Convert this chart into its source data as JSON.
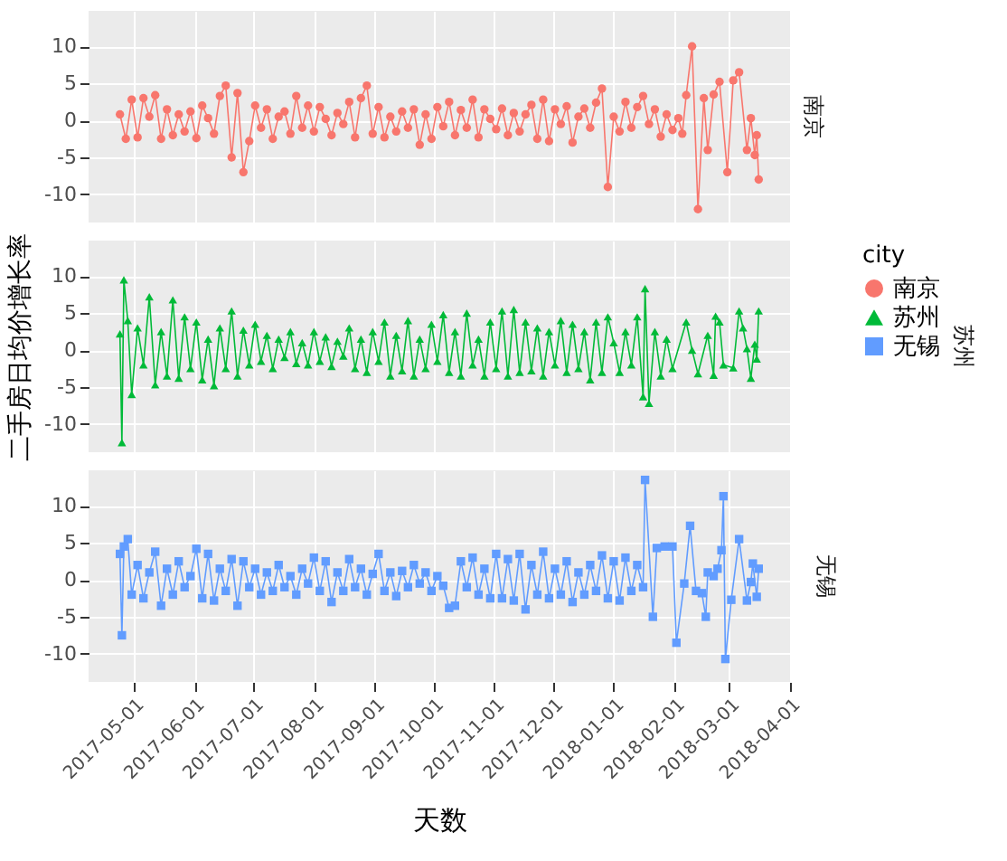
{
  "chart_data": [
    {
      "type": "line",
      "marker": "circle",
      "grid": true,
      "tick_labels": "y",
      "xlim": [
        "2017-04-08",
        "2018-04-01"
      ],
      "ylim": [
        -13.8,
        14.8
      ],
      "yticks": [
        -10,
        -5,
        0,
        5,
        10
      ],
      "x": [
        "2017-04-24",
        "2017-04-27",
        "2017-04-30",
        "2017-05-03",
        "2017-05-06",
        "2017-05-09",
        "2017-05-12",
        "2017-05-15",
        "2017-05-18",
        "2017-05-21",
        "2017-05-24",
        "2017-05-27",
        "2017-05-30",
        "2017-06-02",
        "2017-06-05",
        "2017-06-08",
        "2017-06-11",
        "2017-06-14",
        "2017-06-17",
        "2017-06-20",
        "2017-06-23",
        "2017-06-26",
        "2017-06-29",
        "2017-07-02",
        "2017-07-05",
        "2017-07-08",
        "2017-07-11",
        "2017-07-14",
        "2017-07-17",
        "2017-07-20",
        "2017-07-23",
        "2017-07-26",
        "2017-07-29",
        "2017-08-01",
        "2017-08-04",
        "2017-08-07",
        "2017-08-10",
        "2017-08-13",
        "2017-08-16",
        "2017-08-19",
        "2017-08-22",
        "2017-08-25",
        "2017-08-28",
        "2017-08-31",
        "2017-09-03",
        "2017-09-06",
        "2017-09-09",
        "2017-09-12",
        "2017-09-15",
        "2017-09-18",
        "2017-09-21",
        "2017-09-24",
        "2017-09-27",
        "2017-09-30",
        "2017-10-03",
        "2017-10-06",
        "2017-10-09",
        "2017-10-12",
        "2017-10-15",
        "2017-10-18",
        "2017-10-21",
        "2017-10-24",
        "2017-10-27",
        "2017-10-30",
        "2017-11-02",
        "2017-11-05",
        "2017-11-08",
        "2017-11-11",
        "2017-11-14",
        "2017-11-17",
        "2017-11-20",
        "2017-11-23",
        "2017-11-26",
        "2017-11-29",
        "2017-12-02",
        "2017-12-05",
        "2017-12-08",
        "2017-12-11",
        "2017-12-14",
        "2017-12-17",
        "2017-12-20",
        "2017-12-23",
        "2017-12-26",
        "2017-12-29",
        "2018-01-01",
        "2018-01-04",
        "2018-01-07",
        "2018-01-10",
        "2018-01-13",
        "2018-01-16",
        "2018-01-19",
        "2018-01-22",
        "2018-01-25",
        "2018-01-28",
        "2018-01-31",
        "2018-02-03",
        "2018-02-05",
        "2018-02-07",
        "2018-02-10",
        "2018-02-13",
        "2018-02-16",
        "2018-02-18",
        "2018-02-21",
        "2018-02-24",
        "2018-02-28",
        "2018-03-03",
        "2018-03-06",
        "2018-03-10",
        "2018-03-12",
        "2018-03-14",
        "2018-03-15",
        "2018-03-16"
      ],
      "series": [
        {
          "name": "南京",
          "color": "#f8766d",
          "values": [
            0.8,
            -2.5,
            2.8,
            -2.3,
            3,
            0.5,
            3.4,
            -2.5,
            1.5,
            -2,
            0.8,
            -1.5,
            1.2,
            -2.4,
            2,
            0.3,
            -1.8,
            3.3,
            4.7,
            -5,
            3.7,
            -7,
            -2.8,
            2,
            -1,
            1.5,
            -2.5,
            0.5,
            1.2,
            -1.8,
            3.3,
            -1,
            2,
            -1.5,
            1.8,
            0.2,
            -2,
            1,
            -0.5,
            2.5,
            -2.3,
            3,
            4.7,
            -1.8,
            1.8,
            -2.3,
            0.5,
            -1.5,
            1.2,
            -1,
            1.5,
            -3.3,
            0.8,
            -2.5,
            1.8,
            -0.8,
            2.5,
            -2,
            1.4,
            -1,
            2.8,
            -2.3,
            1.5,
            0.2,
            -1.2,
            1.6,
            -2,
            1,
            -1.5,
            0.8,
            2.1,
            -2.5,
            2.8,
            -2.8,
            1.5,
            -0.5,
            1.9,
            -3,
            0.5,
            1.6,
            -1,
            2.4,
            4.3,
            -9,
            0.5,
            -1.5,
            2.5,
            -1,
            1.8,
            3.3,
            -0.5,
            1.5,
            -2.2,
            0.8,
            -1.3,
            0.3,
            -1.8,
            3.4,
            10,
            -12,
            3,
            -4,
            3.5,
            5.2,
            -7,
            5.4,
            6.5,
            -4,
            0.3,
            -4.7,
            -2,
            -8
          ]
        }
      ]
    },
    {
      "type": "line",
      "marker": "triangle",
      "grid": true,
      "tick_labels": "y",
      "ylabel": "二手房日均价增长率",
      "legend": "right",
      "legend_title": "city",
      "xlim": [
        "2017-04-08",
        "2018-04-01"
      ],
      "ylim": [
        -13.8,
        14.8
      ],
      "yticks": [
        -10,
        -5,
        0,
        5,
        10
      ],
      "x": [
        "2017-04-24",
        "2017-04-25",
        "2017-04-26",
        "2017-04-28",
        "2017-04-30",
        "2017-05-03",
        "2017-05-06",
        "2017-05-09",
        "2017-05-12",
        "2017-05-15",
        "2017-05-18",
        "2017-05-21",
        "2017-05-24",
        "2017-05-27",
        "2017-05-30",
        "2017-06-02",
        "2017-06-05",
        "2017-06-08",
        "2017-06-11",
        "2017-06-14",
        "2017-06-17",
        "2017-06-20",
        "2017-06-23",
        "2017-06-26",
        "2017-06-29",
        "2017-07-02",
        "2017-07-05",
        "2017-07-08",
        "2017-07-11",
        "2017-07-14",
        "2017-07-17",
        "2017-07-20",
        "2017-07-23",
        "2017-07-26",
        "2017-07-29",
        "2017-08-01",
        "2017-08-04",
        "2017-08-07",
        "2017-08-10",
        "2017-08-13",
        "2017-08-16",
        "2017-08-19",
        "2017-08-22",
        "2017-08-25",
        "2017-08-28",
        "2017-08-31",
        "2017-09-03",
        "2017-09-06",
        "2017-09-09",
        "2017-09-12",
        "2017-09-15",
        "2017-09-18",
        "2017-09-21",
        "2017-09-24",
        "2017-09-27",
        "2017-09-30",
        "2017-10-03",
        "2017-10-06",
        "2017-10-09",
        "2017-10-12",
        "2017-10-15",
        "2017-10-18",
        "2017-10-21",
        "2017-10-24",
        "2017-10-27",
        "2017-10-30",
        "2017-11-02",
        "2017-11-05",
        "2017-11-08",
        "2017-11-11",
        "2017-11-14",
        "2017-11-17",
        "2017-11-20",
        "2017-11-23",
        "2017-11-26",
        "2017-11-29",
        "2017-12-02",
        "2017-12-05",
        "2017-12-08",
        "2017-12-11",
        "2017-12-14",
        "2017-12-17",
        "2017-12-20",
        "2017-12-23",
        "2017-12-26",
        "2017-12-29",
        "2018-01-01",
        "2018-01-04",
        "2018-01-07",
        "2018-01-10",
        "2018-01-13",
        "2018-01-16",
        "2018-01-17",
        "2018-01-19",
        "2018-01-22",
        "2018-01-25",
        "2018-01-28",
        "2018-01-31",
        "2018-02-07",
        "2018-02-10",
        "2018-02-13",
        "2018-02-18",
        "2018-02-21",
        "2018-02-22",
        "2018-02-24",
        "2018-02-26",
        "2018-03-03",
        "2018-03-06",
        "2018-03-08",
        "2018-03-10",
        "2018-03-12",
        "2018-03-14",
        "2018-03-15",
        "2018-03-16"
      ],
      "series": [
        {
          "name": "苏州",
          "color": "#00ba38",
          "values": [
            2.2,
            -12.5,
            9.5,
            4,
            -6,
            3,
            -2,
            7.2,
            -4.7,
            2.5,
            -3.5,
            6.8,
            -3.8,
            4.5,
            -2.5,
            3.8,
            -4,
            1.5,
            -4.8,
            3,
            -2.5,
            5.3,
            -3.5,
            2.7,
            -2,
            3.5,
            -1.5,
            2,
            -2.5,
            1.5,
            -1,
            2.5,
            -1.8,
            1,
            -2,
            2.5,
            -1.5,
            1.8,
            -2.2,
            1.2,
            -0.8,
            3,
            -2.5,
            1.5,
            -3,
            2.5,
            -1.5,
            3.8,
            -3.5,
            2,
            -2.8,
            4,
            -3.5,
            1.5,
            -2.5,
            3.5,
            -1.5,
            4.8,
            -3,
            2.5,
            -3.5,
            5,
            -2,
            1.5,
            -3.5,
            3.8,
            -2.5,
            5.3,
            -3.5,
            5.5,
            -3,
            3.8,
            -2.8,
            3,
            -3.5,
            2.5,
            -2,
            4,
            -3,
            3.5,
            -2.5,
            2.5,
            -4,
            3.8,
            -3,
            4.5,
            1,
            -3,
            2.5,
            -2,
            4.5,
            -6.3,
            8.3,
            -7.2,
            2.5,
            -3.5,
            1.5,
            -2.5,
            3.8,
            0,
            -3.2,
            2,
            -3.4,
            4.6,
            3.8,
            -2,
            -2.4,
            5.3,
            3,
            0.2,
            -3.8,
            0.8,
            -1.2,
            5.3
          ]
        }
      ]
    },
    {
      "type": "line",
      "marker": "square",
      "grid": true,
      "xlabel": "天数",
      "xlim": [
        "2017-04-08",
        "2018-04-01"
      ],
      "ylim": [
        -13.8,
        14.8
      ],
      "yticks": [
        -10,
        -5,
        0,
        5,
        10
      ],
      "xticks": [
        "2017-05-01",
        "2017-06-01",
        "2017-07-01",
        "2017-08-01",
        "2017-09-01",
        "2017-10-01",
        "2017-11-01",
        "2017-12-01",
        "2018-01-01",
        "2018-02-01",
        "2018-03-01",
        "2018-04-01"
      ],
      "x": [
        "2017-04-24",
        "2017-04-25",
        "2017-04-26",
        "2017-04-28",
        "2017-04-30",
        "2017-05-03",
        "2017-05-06",
        "2017-05-09",
        "2017-05-12",
        "2017-05-15",
        "2017-05-18",
        "2017-05-21",
        "2017-05-24",
        "2017-05-27",
        "2017-05-30",
        "2017-06-02",
        "2017-06-05",
        "2017-06-08",
        "2017-06-11",
        "2017-06-14",
        "2017-06-17",
        "2017-06-20",
        "2017-06-23",
        "2017-06-26",
        "2017-06-29",
        "2017-07-02",
        "2017-07-05",
        "2017-07-08",
        "2017-07-11",
        "2017-07-14",
        "2017-07-17",
        "2017-07-20",
        "2017-07-23",
        "2017-07-26",
        "2017-07-29",
        "2017-08-01",
        "2017-08-04",
        "2017-08-07",
        "2017-08-10",
        "2017-08-13",
        "2017-08-16",
        "2017-08-19",
        "2017-08-22",
        "2017-08-25",
        "2017-08-28",
        "2017-08-31",
        "2017-09-03",
        "2017-09-06",
        "2017-09-09",
        "2017-09-12",
        "2017-09-15",
        "2017-09-18",
        "2017-09-21",
        "2017-09-24",
        "2017-09-27",
        "2017-09-30",
        "2017-10-03",
        "2017-10-06",
        "2017-10-09",
        "2017-10-12",
        "2017-10-15",
        "2017-10-18",
        "2017-10-21",
        "2017-10-24",
        "2017-10-27",
        "2017-10-30",
        "2017-11-02",
        "2017-11-05",
        "2017-11-08",
        "2017-11-11",
        "2017-11-14",
        "2017-11-17",
        "2017-11-20",
        "2017-11-23",
        "2017-11-26",
        "2017-11-29",
        "2017-12-02",
        "2017-12-05",
        "2017-12-08",
        "2017-12-11",
        "2017-12-14",
        "2017-12-17",
        "2017-12-20",
        "2017-12-23",
        "2017-12-26",
        "2017-12-29",
        "2018-01-01",
        "2018-01-04",
        "2018-01-07",
        "2018-01-10",
        "2018-01-13",
        "2018-01-16",
        "2018-01-17",
        "2018-01-21",
        "2018-01-23",
        "2018-01-27",
        "2018-01-31",
        "2018-02-02",
        "2018-02-06",
        "2018-02-09",
        "2018-02-12",
        "2018-02-15",
        "2018-02-17",
        "2018-02-18",
        "2018-02-21",
        "2018-02-23",
        "2018-02-25",
        "2018-02-26",
        "2018-02-27",
        "2018-03-02",
        "2018-03-06",
        "2018-03-10",
        "2018-03-12",
        "2018-03-13",
        "2018-03-15",
        "2018-03-16"
      ],
      "series": [
        {
          "name": "无锡",
          "color": "#619cff",
          "values": [
            3.5,
            -7.5,
            4.5,
            5.5,
            -2,
            2,
            -2.5,
            1,
            3.8,
            -3.5,
            1.5,
            -2,
            2.5,
            -1,
            0.5,
            4.2,
            -2.5,
            3.5,
            -2.8,
            1.5,
            -1.5,
            2.8,
            -3.5,
            2.5,
            -1,
            1.5,
            -2,
            1,
            -1.5,
            2,
            -1,
            0.5,
            -2,
            1.5,
            -0.5,
            3,
            -1.5,
            2.5,
            -3,
            1,
            -1.5,
            2.8,
            -1,
            1.5,
            -2,
            0.8,
            3.5,
            -1.5,
            1,
            -2.2,
            1.2,
            -1,
            2,
            -0.5,
            1,
            -1.5,
            0.5,
            -0.8,
            -3.8,
            -3.5,
            2.5,
            -1,
            3,
            -2,
            1.5,
            -2.5,
            3.5,
            -2.5,
            2.8,
            -2.8,
            3.5,
            -4,
            2,
            -2,
            3.8,
            -2.5,
            1.5,
            -2,
            2.5,
            -3,
            1,
            -2,
            2,
            -1.5,
            3.3,
            -2.5,
            2.5,
            -2.8,
            3,
            -1.5,
            2,
            -1,
            13.5,
            -5,
            4.3,
            4.5,
            4.5,
            -8.5,
            -0.5,
            7.3,
            -1.5,
            -1.8,
            -5,
            1,
            0.5,
            1.5,
            4,
            11.3,
            -10.7,
            -2.7,
            5.5,
            -2.8,
            -0.3,
            2.2,
            -2.3,
            1.5
          ]
        }
      ]
    }
  ]
}
